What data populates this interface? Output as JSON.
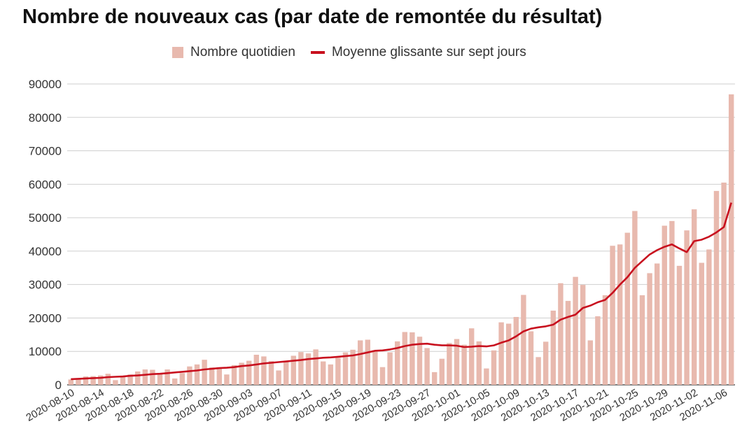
{
  "chart_data": {
    "type": "bar",
    "title": "Nombre de nouveaux cas (par date de remontée du résultat)",
    "xlabel": "",
    "ylabel": "",
    "ylim": [
      0,
      90000
    ],
    "y_ticks": [
      0,
      10000,
      20000,
      30000,
      40000,
      50000,
      60000,
      70000,
      80000,
      90000
    ],
    "grid": true,
    "legend_position": "top",
    "x_start": "2020-08-10",
    "x_end": "2020-11-07",
    "x_tick_labels": [
      "2020-08-10",
      "2020-08-14",
      "2020-08-18",
      "2020-08-22",
      "2020-08-26",
      "2020-08-30",
      "2020-09-03",
      "2020-09-07",
      "2020-09-11",
      "2020-09-15",
      "2020-09-19",
      "2020-09-23",
      "2020-09-27",
      "2020-10-01",
      "2020-10-05",
      "2020-10-09",
      "2020-10-13",
      "2020-10-17",
      "2020-10-21",
      "2020-10-25",
      "2020-10-29",
      "2020-11-02",
      "2020-11-06"
    ],
    "series": [
      {
        "name": "Nombre quotidien",
        "type": "bar",
        "color": "#e8b9ae",
        "values": [
          1600,
          2000,
          2500,
          2600,
          2800,
          3300,
          1400,
          2300,
          3100,
          4000,
          4600,
          4500,
          3500,
          4600,
          1900,
          3500,
          5500,
          6100,
          7500,
          5200,
          4900,
          3100,
          5900,
          6600,
          7200,
          9000,
          8500,
          7100,
          4300,
          7000,
          8700,
          9800,
          9400,
          10600,
          7000,
          6100,
          8100,
          9700,
          10500,
          13300,
          13500,
          10300,
          5300,
          9700,
          13000,
          15800,
          15700,
          14400,
          11000,
          3800,
          7800,
          12500,
          13700,
          12000,
          16900,
          13000,
          4900,
          10300,
          18700,
          18300,
          20300,
          26900,
          16000,
          8300,
          12900,
          22200,
          30400,
          25100,
          32300,
          29900,
          13300,
          20500,
          26800,
          41600,
          42000,
          45500,
          52000,
          26800,
          33400,
          36300,
          47600,
          49000,
          35600,
          46200,
          52500,
          36500,
          40500,
          58000,
          60500,
          86900
        ]
      },
      {
        "name": "Moyenne glissante sur sept jours",
        "type": "line",
        "color": "#c8101e",
        "values": [
          1700,
          1800,
          1900,
          2000,
          2100,
          2300,
          2400,
          2500,
          2700,
          2800,
          3000,
          3200,
          3300,
          3500,
          3700,
          3900,
          4100,
          4300,
          4600,
          4800,
          5000,
          5100,
          5300,
          5600,
          5800,
          6100,
          6400,
          6600,
          6800,
          7000,
          7200,
          7400,
          7700,
          7900,
          8100,
          8200,
          8400,
          8600,
          8800,
          9200,
          9700,
          10200,
          10300,
          10600,
          11000,
          11600,
          12000,
          12200,
          12300,
          12000,
          11800,
          11800,
          11700,
          11300,
          11400,
          11600,
          11500,
          11800,
          12600,
          13300,
          14500,
          16000,
          16800,
          17200,
          17500,
          18000,
          19500,
          20300,
          21000,
          23000,
          23700,
          24700,
          25400,
          27500,
          30000,
          32200,
          35000,
          37000,
          39000,
          40300,
          41300,
          42000,
          40800,
          39700,
          43000,
          43400,
          44300,
          45600,
          47200,
          54500
        ]
      }
    ]
  }
}
